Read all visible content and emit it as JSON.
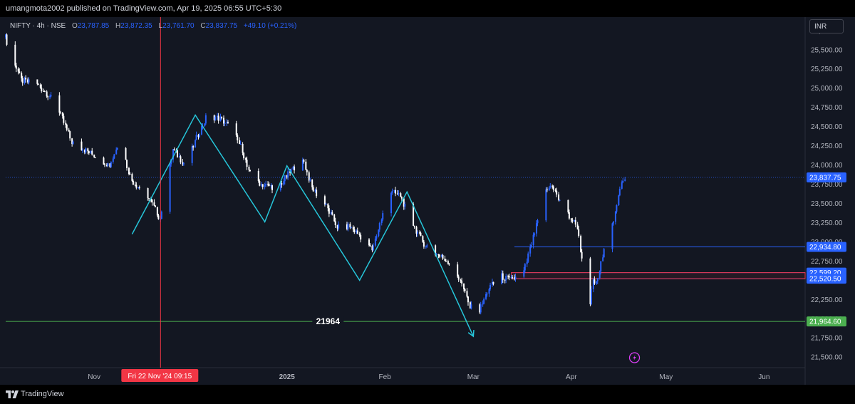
{
  "header": {
    "published_text": "umangmota2002 published on TradingView.com, Apr 19, 2025 06:55 UTC+5:30"
  },
  "legend": {
    "symbol": "NIFTY · 4h · NSE",
    "open_label": "O",
    "open": "23,787.85",
    "high_label": "H",
    "high": "23,872.35",
    "low_label": "L",
    "low": "23,761.70",
    "close_label": "C",
    "close": "23,837.75",
    "change": "+49.10 (+0.21%)"
  },
  "currency_button": {
    "label": "INR"
  },
  "footer": {
    "brand": "TradingView"
  },
  "colors": {
    "up": "#2962ff",
    "down": "#ffffff",
    "zigzag": "#26c6da",
    "support": "#4caf50",
    "crosshair": "#f23645",
    "level_line": "#2962ff",
    "zone_border": "#f23645",
    "background": "#131722"
  },
  "chart_data": {
    "type": "candlestick",
    "symbol": "NIFTY",
    "interval": "4h",
    "exchange": "NSE",
    "ylim": [
      21400,
      25850
    ],
    "y_ticks": [
      21500,
      21750,
      22000,
      22250,
      22500,
      22750,
      23000,
      23250,
      23500,
      23750,
      24000,
      24250,
      24500,
      24750,
      25000,
      25250,
      25500,
      25750
    ],
    "y_tick_labels": [
      "21,500.00",
      "21,750.00",
      "22,000.00",
      "22,250.00",
      "22,500.00",
      "22,750.00",
      "23,000.00",
      "23,250.00",
      "23,500.00",
      "23,750.00",
      "24,000.00",
      "24,250.00",
      "24,500.00",
      "24,750.00",
      "25,000.00",
      "25,250.00",
      "25,500.00",
      "25,750.00"
    ],
    "x_range": [
      "2024-10-04",
      "2025-06-14"
    ],
    "x_ticks": [
      {
        "date": "2024-11-01",
        "label": "Nov",
        "bold": false
      },
      {
        "date": "2025-01-01",
        "label": "2025",
        "bold": true
      },
      {
        "date": "2025-02-01",
        "label": "Feb",
        "bold": false
      },
      {
        "date": "2025-03-01",
        "label": "Mar",
        "bold": false
      },
      {
        "date": "2025-04-01",
        "label": "Apr",
        "bold": false
      },
      {
        "date": "2025-05-01",
        "label": "May",
        "bold": false
      },
      {
        "date": "2025-06-01",
        "label": "Jun",
        "bold": false
      }
    ],
    "price_path": [
      [
        "2024-10-04",
        25660
      ],
      [
        "2024-10-09",
        25100
      ],
      [
        "2024-10-14",
        25050
      ],
      [
        "2024-10-18",
        24900
      ],
      [
        "2024-10-22",
        24600
      ],
      [
        "2024-10-25",
        24300
      ],
      [
        "2024-10-29",
        24200
      ],
      [
        "2024-11-02",
        24100
      ],
      [
        "2024-11-06",
        24000
      ],
      [
        "2024-11-09",
        24300
      ],
      [
        "2024-11-13",
        23800
      ],
      [
        "2024-11-18",
        23600
      ],
      [
        "2024-11-22",
        23300
      ],
      [
        "2024-11-26",
        24200
      ],
      [
        "2024-11-30",
        24000
      ],
      [
        "2024-12-04",
        24400
      ],
      [
        "2024-12-07",
        24650
      ],
      [
        "2024-12-11",
        24600
      ],
      [
        "2024-12-14",
        24500
      ],
      [
        "2024-12-18",
        24200
      ],
      [
        "2024-12-20",
        23900
      ],
      [
        "2024-12-24",
        23750
      ],
      [
        "2024-12-29",
        23700
      ],
      [
        "2025-01-02",
        23900
      ],
      [
        "2025-01-06",
        24100
      ],
      [
        "2025-01-09",
        23700
      ],
      [
        "2025-01-13",
        23500
      ],
      [
        "2025-01-17",
        23200
      ],
      [
        "2025-01-21",
        23200
      ],
      [
        "2025-01-25",
        23050
      ],
      [
        "2025-01-28",
        22900
      ],
      [
        "2025-01-31",
        23300
      ],
      [
        "2025-02-03",
        23650
      ],
      [
        "2025-02-06",
        23600
      ],
      [
        "2025-02-09",
        23300
      ],
      [
        "2025-02-13",
        23000
      ],
      [
        "2025-02-17",
        22850
      ],
      [
        "2025-02-21",
        22750
      ],
      [
        "2025-02-25",
        22500
      ],
      [
        "2025-02-28",
        22150
      ],
      [
        "2025-03-03",
        22100
      ],
      [
        "2025-03-06",
        22400
      ],
      [
        "2025-03-10",
        22550
      ],
      [
        "2025-03-13",
        22500
      ],
      [
        "2025-03-17",
        22600
      ],
      [
        "2025-03-21",
        23200
      ],
      [
        "2025-03-24",
        23650
      ],
      [
        "2025-03-26",
        23750
      ],
      [
        "2025-03-28",
        23550
      ],
      [
        "2025-04-01",
        23300
      ],
      [
        "2025-04-03",
        23200
      ],
      [
        "2025-04-04",
        22900
      ],
      [
        "2025-04-07",
        22200
      ],
      [
        "2025-04-08",
        22500
      ],
      [
        "2025-04-09",
        22450
      ],
      [
        "2025-04-11",
        22800
      ],
      [
        "2025-04-15",
        23350
      ],
      [
        "2025-04-17",
        23800
      ],
      [
        "2025-04-18",
        23837.75
      ]
    ],
    "horizontal_levels": [
      {
        "value": 23837.75,
        "label": "23,837.75",
        "style": "dotted"
      },
      {
        "value": 22934.8,
        "label": "22,934.80",
        "style": "solid",
        "start": "2025-03-14"
      },
      {
        "value": 22599.2,
        "label": "22,599.20",
        "style": "zone_top",
        "start": "2025-03-13"
      },
      {
        "value": 22520.5,
        "label": "22,520.50",
        "style": "zone_bottom",
        "start": "2025-03-13"
      },
      {
        "value": 21964.6,
        "label": "21,964.60",
        "style": "support"
      }
    ],
    "annotations": [
      {
        "type": "text",
        "text": "21964",
        "date": "2025-01-14",
        "value": 21964
      }
    ],
    "zigzag": [
      [
        "2024-11-13",
        23100
      ],
      [
        "2024-12-03",
        24650
      ],
      [
        "2024-12-25",
        23260
      ],
      [
        "2025-01-01",
        23990
      ],
      [
        "2025-01-24",
        22500
      ],
      [
        "2025-02-08",
        23650
      ],
      [
        "2025-03-01",
        21770
      ]
    ],
    "crosshair": {
      "date": "2024-11-22",
      "label": "Fri 22 Nov '24   09:15"
    }
  }
}
